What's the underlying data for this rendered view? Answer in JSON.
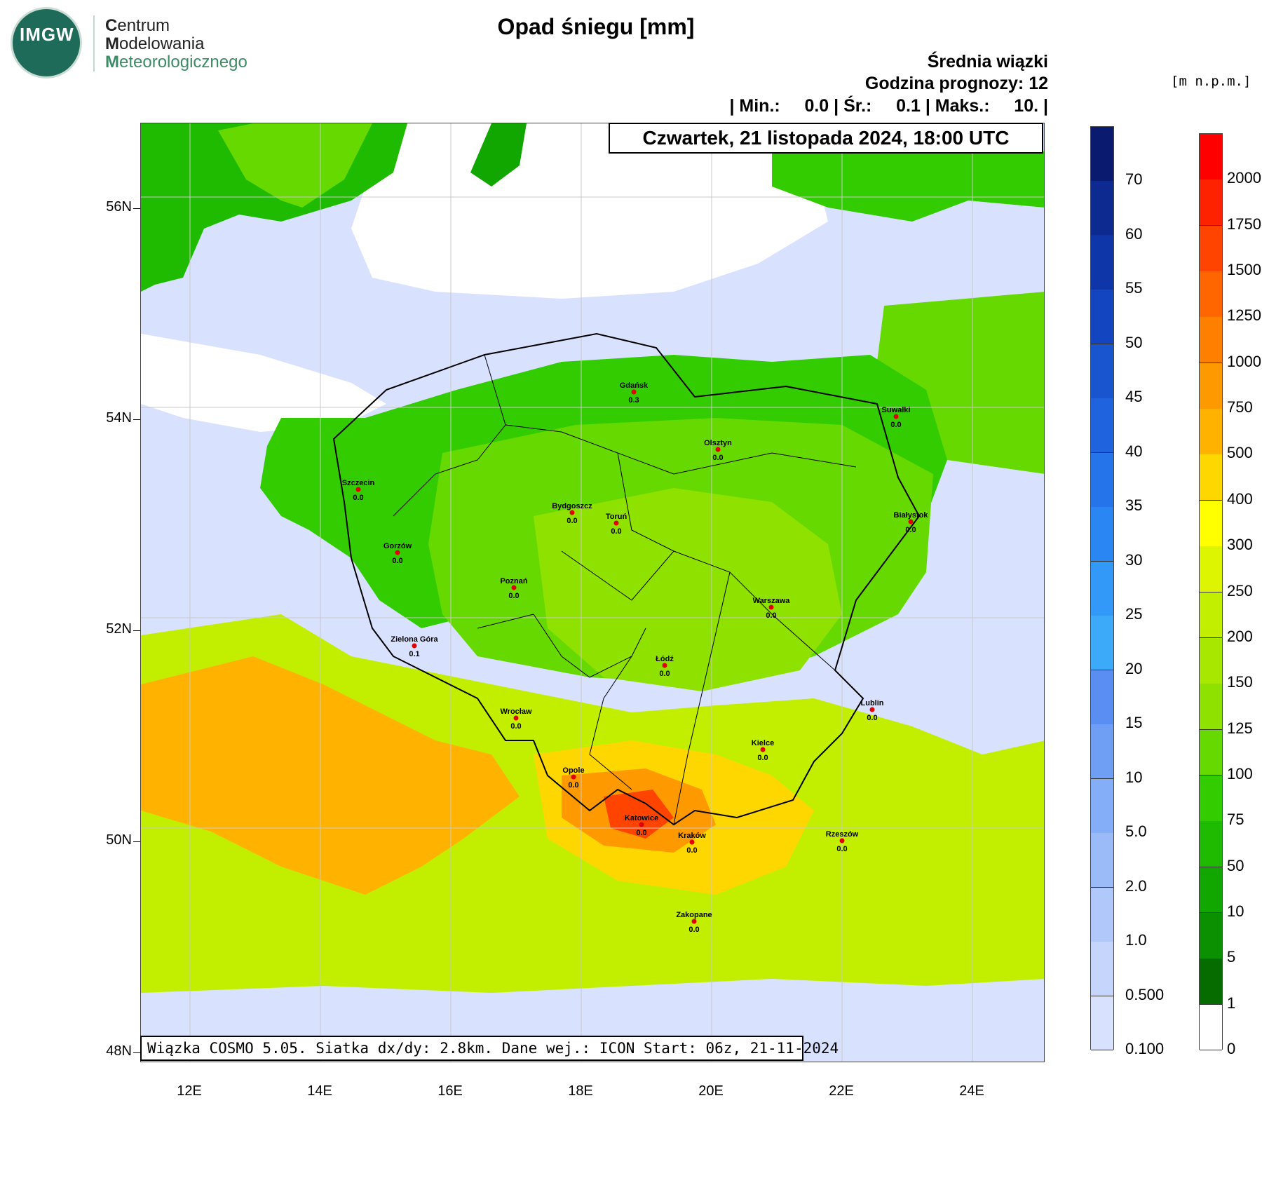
{
  "logo": {
    "mark": "IMGW"
  },
  "org_lines": [
    {
      "cap": "C",
      "rest": "entrum"
    },
    {
      "cap": "M",
      "rest": "odelowania"
    },
    {
      "cap": "M",
      "rest": "eteorologicznego"
    }
  ],
  "title": "Opad śniegu [mm]",
  "header": {
    "line1": "Średnia wiązki",
    "line2": "Godzina prognozy: 12",
    "line3": "| Min.:     0.0 | Śr.:     0.1 | Maks.:     10. |"
  },
  "date_box": "Czwartek, 21 listopada 2024, 18:00 UTC",
  "footer_box": "Wiązka COSMO 5.05. Siatka dx/dy: 2.8km. Dane wej.: ICON Start: 06z, 21-11-2024",
  "lat_ticks": [
    "56N",
    "54N",
    "52N",
    "50N",
    "48N"
  ],
  "lon_ticks": [
    "12E",
    "14E",
    "16E",
    "18E",
    "20E",
    "22E",
    "24E"
  ],
  "snow_scale": {
    "labels": [
      "70",
      "60",
      "55",
      "50",
      "45",
      "40",
      "35",
      "30",
      "25",
      "20",
      "15",
      "10",
      "5.0",
      "2.0",
      "1.0",
      "0.500",
      "0.100"
    ],
    "colors": [
      "#0a1a6e",
      "#0c2a8f",
      "#0f36a8",
      "#1445c0",
      "#1a55d0",
      "#1f63df",
      "#2574ea",
      "#2a86f2",
      "#3399f8",
      "#3daaf9",
      "#5b8ef2",
      "#6f9ff5",
      "#84aef7",
      "#9bbbf8",
      "#b1c8fa",
      "#c5d5fb",
      "#d8e2ff"
    ]
  },
  "elev_unit": "[m n.p.m.]",
  "elev_scale": {
    "labels": [
      "2000",
      "1750",
      "1500",
      "1250",
      "1000",
      "750",
      "500",
      "400",
      "300",
      "250",
      "200",
      "150",
      "125",
      "100",
      "75",
      "50",
      "10",
      "5",
      "1",
      "0"
    ],
    "colors": [
      "#ff0000",
      "#ff2200",
      "#ff4400",
      "#ff6600",
      "#ff7f00",
      "#ff9900",
      "#ffb300",
      "#ffd700",
      "#ffff00",
      "#ddf500",
      "#c2ef00",
      "#a8e800",
      "#8fe100",
      "#66d900",
      "#33cc00",
      "#1fbb00",
      "#11a600",
      "#0a9000",
      "#066c00",
      "#ffffff"
    ]
  },
  "cities": [
    {
      "name": "Gdańsk",
      "value": "0.3"
    },
    {
      "name": "Suwałki",
      "value": "0.0"
    },
    {
      "name": "Olsztyn",
      "value": "0.0"
    },
    {
      "name": "Szczecin",
      "value": "0.0"
    },
    {
      "name": "Bydgoszcz",
      "value": "0.0"
    },
    {
      "name": "Toruń",
      "value": "0.0"
    },
    {
      "name": "Białystok",
      "value": "0.0"
    },
    {
      "name": "Gorzów",
      "value": "0.0"
    },
    {
      "name": "Poznań",
      "value": "0.0"
    },
    {
      "name": "Warszawa",
      "value": "0.0"
    },
    {
      "name": "Zielona Góra",
      "value": "0.1"
    },
    {
      "name": "Łódź",
      "value": "0.0"
    },
    {
      "name": "Wrocław",
      "value": "0.0"
    },
    {
      "name": "Lublin",
      "value": "0.0"
    },
    {
      "name": "Kielce",
      "value": "0.0"
    },
    {
      "name": "Opole",
      "value": "0.0"
    },
    {
      "name": "Katowice",
      "value": "0.0"
    },
    {
      "name": "Kraków",
      "value": "0.0"
    },
    {
      "name": "Rzeszów",
      "value": "0.0"
    },
    {
      "name": "Zakopane",
      "value": "0.0"
    }
  ]
}
